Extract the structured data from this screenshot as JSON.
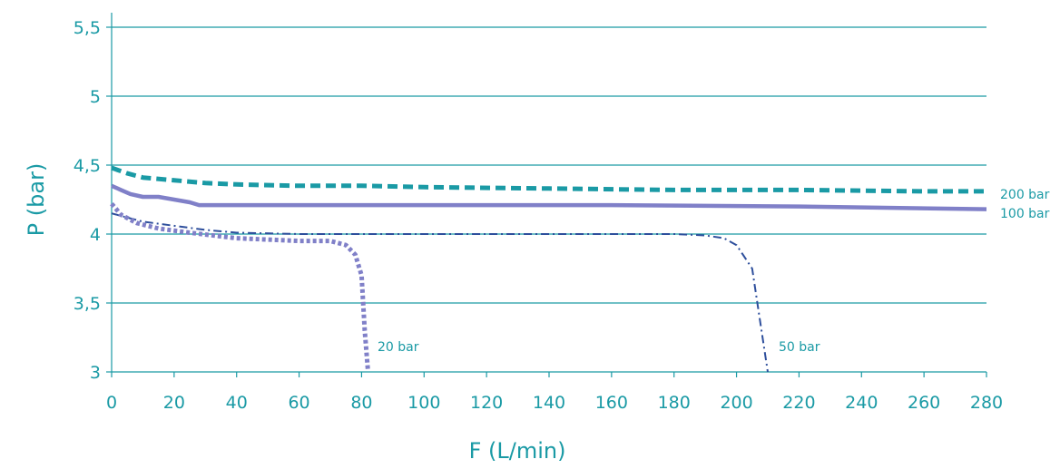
{
  "chart_data": {
    "type": "line",
    "xlabel": "F (L/min)",
    "ylabel": "P (bar)",
    "xlim": [
      0,
      280
    ],
    "ylim": [
      3,
      5.5
    ],
    "x_ticks": [
      0,
      20,
      40,
      60,
      80,
      100,
      120,
      140,
      160,
      180,
      200,
      220,
      240,
      260,
      280
    ],
    "x_tick_labels": [
      "0",
      "20",
      "40",
      "60",
      "80",
      "100",
      "120",
      "140",
      "160",
      "180",
      "200",
      "220",
      "240",
      "260",
      "280"
    ],
    "y_ticks": [
      3,
      3.5,
      4,
      4.5,
      5,
      5.5
    ],
    "y_tick_labels": [
      "3",
      "3,5",
      "4",
      "4,5",
      "5",
      "5,5"
    ],
    "grid": "horizontal",
    "colors": {
      "axis": "#1a9aa5",
      "grid": "#1a9aa5",
      "text": "#1a9aa5"
    },
    "series": [
      {
        "name": "200 bar",
        "color": "#1a9aa5",
        "style": "dashed-thick",
        "x": [
          0,
          5,
          10,
          20,
          30,
          40,
          60,
          80,
          100,
          140,
          180,
          220,
          260,
          280
        ],
        "y": [
          4.48,
          4.44,
          4.41,
          4.39,
          4.37,
          4.36,
          4.35,
          4.35,
          4.34,
          4.33,
          4.32,
          4.32,
          4.31,
          4.31
        ]
      },
      {
        "name": "100 bar",
        "color": "#8080c8",
        "style": "solid-thick",
        "x": [
          0,
          3,
          6,
          10,
          15,
          20,
          25,
          28,
          35,
          50,
          100,
          160,
          220,
          280
        ],
        "y": [
          4.35,
          4.32,
          4.29,
          4.27,
          4.27,
          4.25,
          4.23,
          4.21,
          4.21,
          4.21,
          4.21,
          4.21,
          4.2,
          4.18
        ]
      },
      {
        "name": "50 bar",
        "color": "#2e4f9c",
        "style": "dash-dot",
        "x": [
          0,
          5,
          10,
          20,
          30,
          40,
          60,
          100,
          150,
          180,
          190,
          196,
          200,
          205,
          208,
          210
        ],
        "y": [
          4.15,
          4.12,
          4.09,
          4.06,
          4.03,
          4.01,
          4.0,
          4.0,
          4.0,
          4.0,
          3.99,
          3.97,
          3.92,
          3.75,
          3.3,
          3.0
        ]
      },
      {
        "name": "20 bar",
        "color": "#8080c8",
        "style": "dotted-thick",
        "x": [
          0,
          3,
          8,
          15,
          25,
          40,
          60,
          70,
          75,
          78,
          80,
          81,
          82
        ],
        "y": [
          4.22,
          4.14,
          4.08,
          4.04,
          4.01,
          3.97,
          3.95,
          3.95,
          3.92,
          3.85,
          3.7,
          3.3,
          3.02
        ]
      }
    ]
  }
}
